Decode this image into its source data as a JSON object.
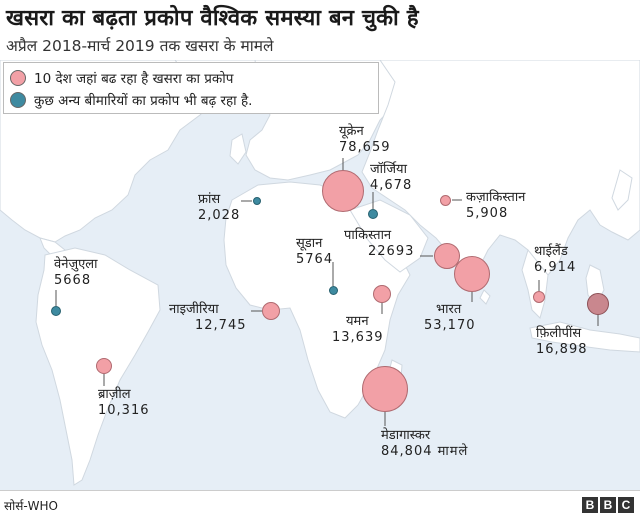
{
  "title": "खसरा का बढ़ता प्रकोप वैश्विक समस्या बन चुकी है",
  "subtitle": "अप्रैल 2018-मार्च 2019 तक खसरा के मामले",
  "legend": {
    "items": [
      {
        "label": "10 देश जहां बढ रहा है खसरा का प्रकोप",
        "color": "#f2a0a6"
      },
      {
        "label": "कुछ अन्य बीमारियों का प्रकोप भी बढ़ रहा है.",
        "color": "#3e8aa0"
      }
    ]
  },
  "colors": {
    "ocean": "#e6eef6",
    "land": "#ffffff",
    "top10": "#f2a0a6",
    "other": "#3e8aa0"
  },
  "places": {
    "ukraine": {
      "name": "यूक्रेन",
      "cases": "78,659",
      "group": "top10"
    },
    "georgia": {
      "name": "जॉर्जिया",
      "cases": "4,678",
      "group": "other"
    },
    "france": {
      "name": "फ्रांस",
      "cases": "2,028",
      "group": "other"
    },
    "kazakhstan": {
      "name": "कज़ाकिस्तान",
      "cases": "5,908",
      "group": "top10"
    },
    "sudan": {
      "name": "सूडान",
      "cases": "5764",
      "group": "other"
    },
    "pakistan": {
      "name": "पाकिस्तान",
      "cases": "22693",
      "group": "top10"
    },
    "thailand": {
      "name": "थाईलैंड",
      "cases": "6,914",
      "group": "top10"
    },
    "venezuela": {
      "name": "वेनेज़ुएला",
      "cases": "5668",
      "group": "other"
    },
    "nigeria": {
      "name": "नाइजीरिया",
      "cases": "12,745",
      "group": "top10"
    },
    "yemen": {
      "name": "यमन",
      "cases": "13,639",
      "group": "top10"
    },
    "india": {
      "name": "भारत",
      "cases": "53,170",
      "group": "top10"
    },
    "philippines": {
      "name": "फ़िलीपींस",
      "cases": "16,898",
      "group": "top10"
    },
    "brazil": {
      "name": "ब्राज़ील",
      "cases": "10,316",
      "group": "top10"
    },
    "madagascar": {
      "name": "मेडागास्कर",
      "cases": "84,804 मामले",
      "group": "top10"
    }
  },
  "footer": {
    "source": "सोर्स-WHO",
    "logo": [
      "B",
      "B",
      "C"
    ]
  }
}
